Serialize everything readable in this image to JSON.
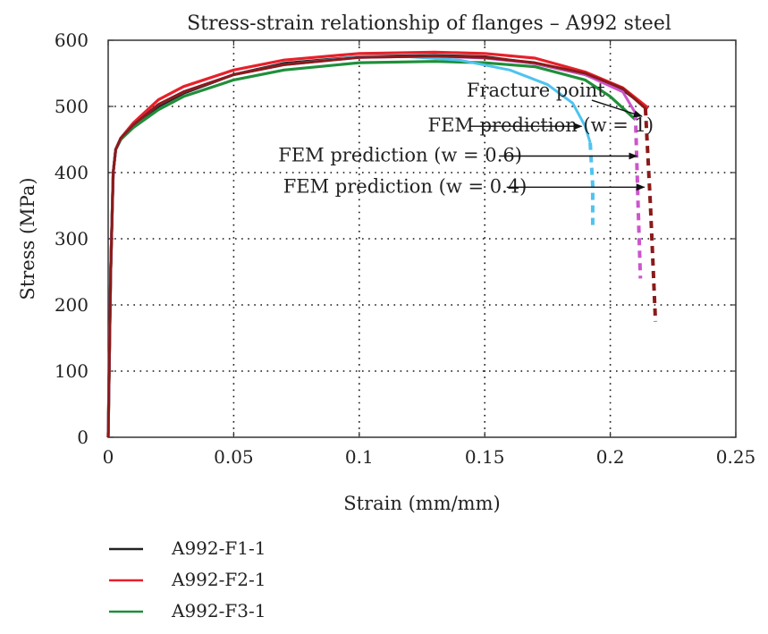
{
  "chart_data": {
    "type": "line",
    "title": "Stress-strain relationship of flanges – A992 steel",
    "xlabel": "Strain (mm/mm)",
    "ylabel": "Stress (MPa)",
    "xlim": [
      0,
      0.25
    ],
    "ylim": [
      0,
      600
    ],
    "xticks": [
      0,
      0.05,
      0.1,
      0.15,
      0.2,
      0.25
    ],
    "xtick_labels": [
      "0",
      "0.05",
      "0.1",
      "0.15",
      "0.2",
      "0.25"
    ],
    "yticks": [
      0,
      100,
      200,
      300,
      400,
      500,
      600
    ],
    "ytick_labels": [
      "0",
      "100",
      "200",
      "300",
      "400",
      "500",
      "600"
    ],
    "grid": true,
    "grid_style": "dotted",
    "legend_position": "bottom-left, below chart",
    "series": [
      {
        "name": "A992-F1-1",
        "color": "#222222",
        "style": "solid",
        "x": [
          0,
          0.001,
          0.002,
          0.003,
          0.005,
          0.01,
          0.02,
          0.03,
          0.05,
          0.07,
          0.1,
          0.13,
          0.15,
          0.17,
          0.19,
          0.205,
          0.215
        ],
        "y": [
          0,
          250,
          400,
          435,
          450,
          470,
          500,
          520,
          548,
          565,
          575,
          577,
          575,
          565,
          548,
          525,
          497
        ]
      },
      {
        "name": "A992-F2-1",
        "color": "#e8202a",
        "style": "solid",
        "x": [
          0,
          0.001,
          0.002,
          0.003,
          0.005,
          0.01,
          0.02,
          0.03,
          0.05,
          0.07,
          0.1,
          0.13,
          0.15,
          0.17,
          0.19,
          0.205,
          0.215
        ],
        "y": [
          0,
          250,
          400,
          435,
          452,
          475,
          510,
          530,
          555,
          570,
          580,
          582,
          580,
          573,
          552,
          528,
          498
        ]
      },
      {
        "name": "A992-F3-1",
        "color": "#1f8f3a",
        "style": "solid",
        "x": [
          0,
          0.001,
          0.002,
          0.003,
          0.005,
          0.01,
          0.02,
          0.03,
          0.05,
          0.07,
          0.1,
          0.13,
          0.15,
          0.17,
          0.19,
          0.2,
          0.21
        ],
        "y": [
          0,
          250,
          400,
          435,
          450,
          468,
          495,
          515,
          540,
          555,
          566,
          568,
          566,
          560,
          540,
          515,
          480
        ]
      },
      {
        "name": "",
        "color": "#4fc3ef",
        "style": "solid-then-dashed",
        "x": [
          0,
          0.001,
          0.002,
          0.003,
          0.005,
          0.01,
          0.02,
          0.03,
          0.05,
          0.07,
          0.1,
          0.12,
          0.14,
          0.16,
          0.175,
          0.185,
          0.19,
          0.192,
          0.193,
          0.193
        ],
        "y": [
          0,
          250,
          400,
          435,
          452,
          472,
          503,
          522,
          548,
          563,
          575,
          575,
          570,
          555,
          533,
          505,
          470,
          445,
          380,
          315
        ]
      },
      {
        "name": "",
        "color": "#cc55cc",
        "style": "solid-then-dashed",
        "x": [
          0,
          0.001,
          0.002,
          0.003,
          0.005,
          0.01,
          0.02,
          0.03,
          0.05,
          0.07,
          0.1,
          0.13,
          0.15,
          0.17,
          0.19,
          0.205,
          0.21,
          0.211,
          0.212
        ],
        "y": [
          0,
          250,
          400,
          435,
          452,
          472,
          503,
          522,
          548,
          563,
          574,
          576,
          573,
          565,
          548,
          522,
          490,
          360,
          240
        ]
      },
      {
        "name": "",
        "color": "#8b1a1a",
        "style": "solid-then-dashed",
        "x": [
          0,
          0.001,
          0.002,
          0.003,
          0.005,
          0.01,
          0.02,
          0.03,
          0.05,
          0.07,
          0.1,
          0.13,
          0.15,
          0.17,
          0.19,
          0.205,
          0.214,
          0.216,
          0.218
        ],
        "y": [
          0,
          250,
          400,
          435,
          452,
          472,
          503,
          522,
          548,
          563,
          574,
          576,
          574,
          566,
          550,
          527,
          497,
          350,
          175
        ]
      }
    ],
    "annotations": [
      {
        "text": "Fracture point",
        "x": 0.214,
        "y": 485
      },
      {
        "text": "FEM prediction (w = 1)",
        "x": 0.19,
        "y": 470
      },
      {
        "text": "FEM prediction (w = 0.6)",
        "x": 0.212,
        "y": 425
      },
      {
        "text": "FEM prediction (w = 0.4)",
        "x": 0.215,
        "y": 378
      }
    ]
  }
}
